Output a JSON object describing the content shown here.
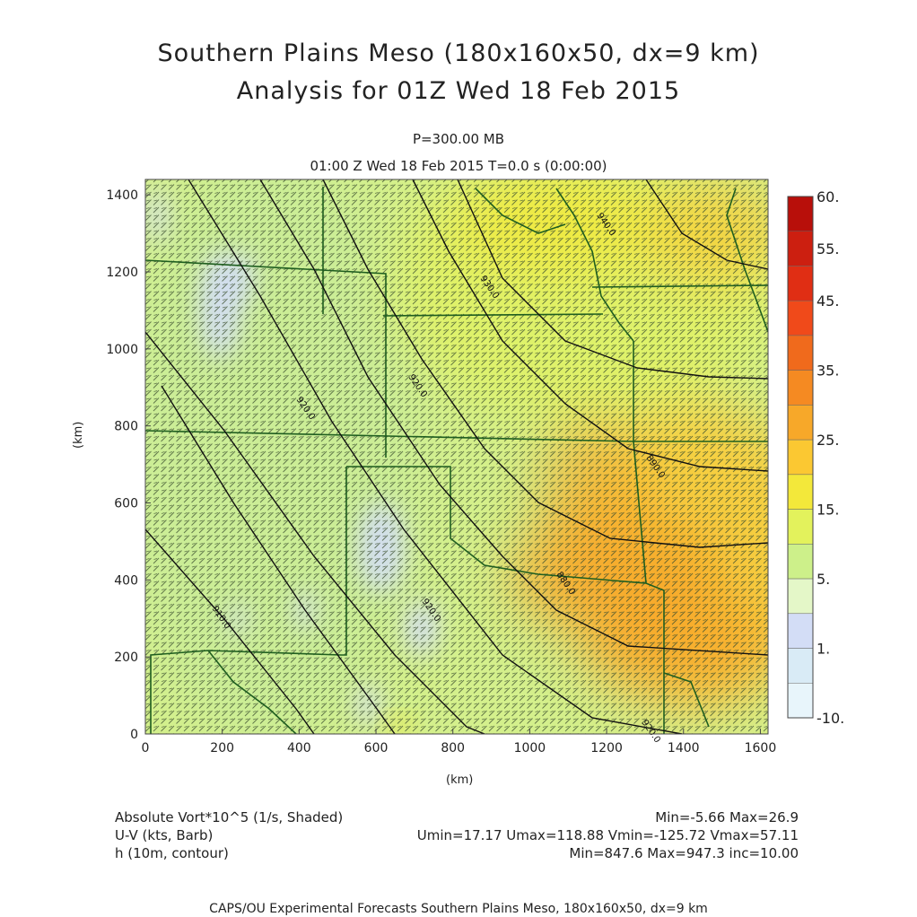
{
  "title": {
    "line1": "Southern Plains Meso (180x160x50, dx=9 km)",
    "line2": "Analysis for 01Z Wed 18 Feb 2015"
  },
  "subtitle": {
    "level": "P=300.00 MB",
    "time": "01:00 Z Wed 18 Feb 2015    T=0.0 s (0:00:00)"
  },
  "axes": {
    "xlabel": "(km)",
    "ylabel": "(km)",
    "x_ticks": [
      "0",
      "200",
      "400",
      "600",
      "800",
      "1000",
      "1200",
      "1400",
      "1600"
    ],
    "y_ticks": [
      "0",
      "200",
      "400",
      "600",
      "800",
      "1000",
      "1200",
      "1400"
    ]
  },
  "colorbar": {
    "labels": [
      "60.",
      "55.",
      "45.",
      "35.",
      "25.",
      "15.",
      "5.",
      "1.",
      "-10."
    ],
    "colors": [
      "#b80f0a",
      "#cc1f10",
      "#e02e14",
      "#f04a1a",
      "#f06a1c",
      "#f58a22",
      "#f7a829",
      "#fbc832",
      "#f3e83a",
      "#e3f25c",
      "#cdf08a",
      "#e4f7c8",
      "#d3ddf6",
      "#d9ebf6",
      "#e8f5fb"
    ]
  },
  "legend": {
    "field1_label": "Absolute Vort*10^5 (1/s, Shaded)",
    "field1_stats": "Min=-5.66 Max=26.9",
    "field2_label": "U-V (kts, Barb)",
    "field2_stats": "Umin=17.17 Umax=118.88 Vmin=-125.72 Vmax=57.11",
    "field3_label": "h (10m, contour)",
    "field3_stats": "Min=847.6 Max=947.3 inc=10.00"
  },
  "contours": {
    "labels": [
      "850.0",
      "860.0",
      "870.0",
      "880.0",
      "890.0",
      "900.0",
      "910.0",
      "920.0",
      "930.0",
      "940.0"
    ]
  },
  "credit": "CAPS/OU Experimental Forecasts  Southern Plains Meso, 180x160x50, dx=9 km"
}
